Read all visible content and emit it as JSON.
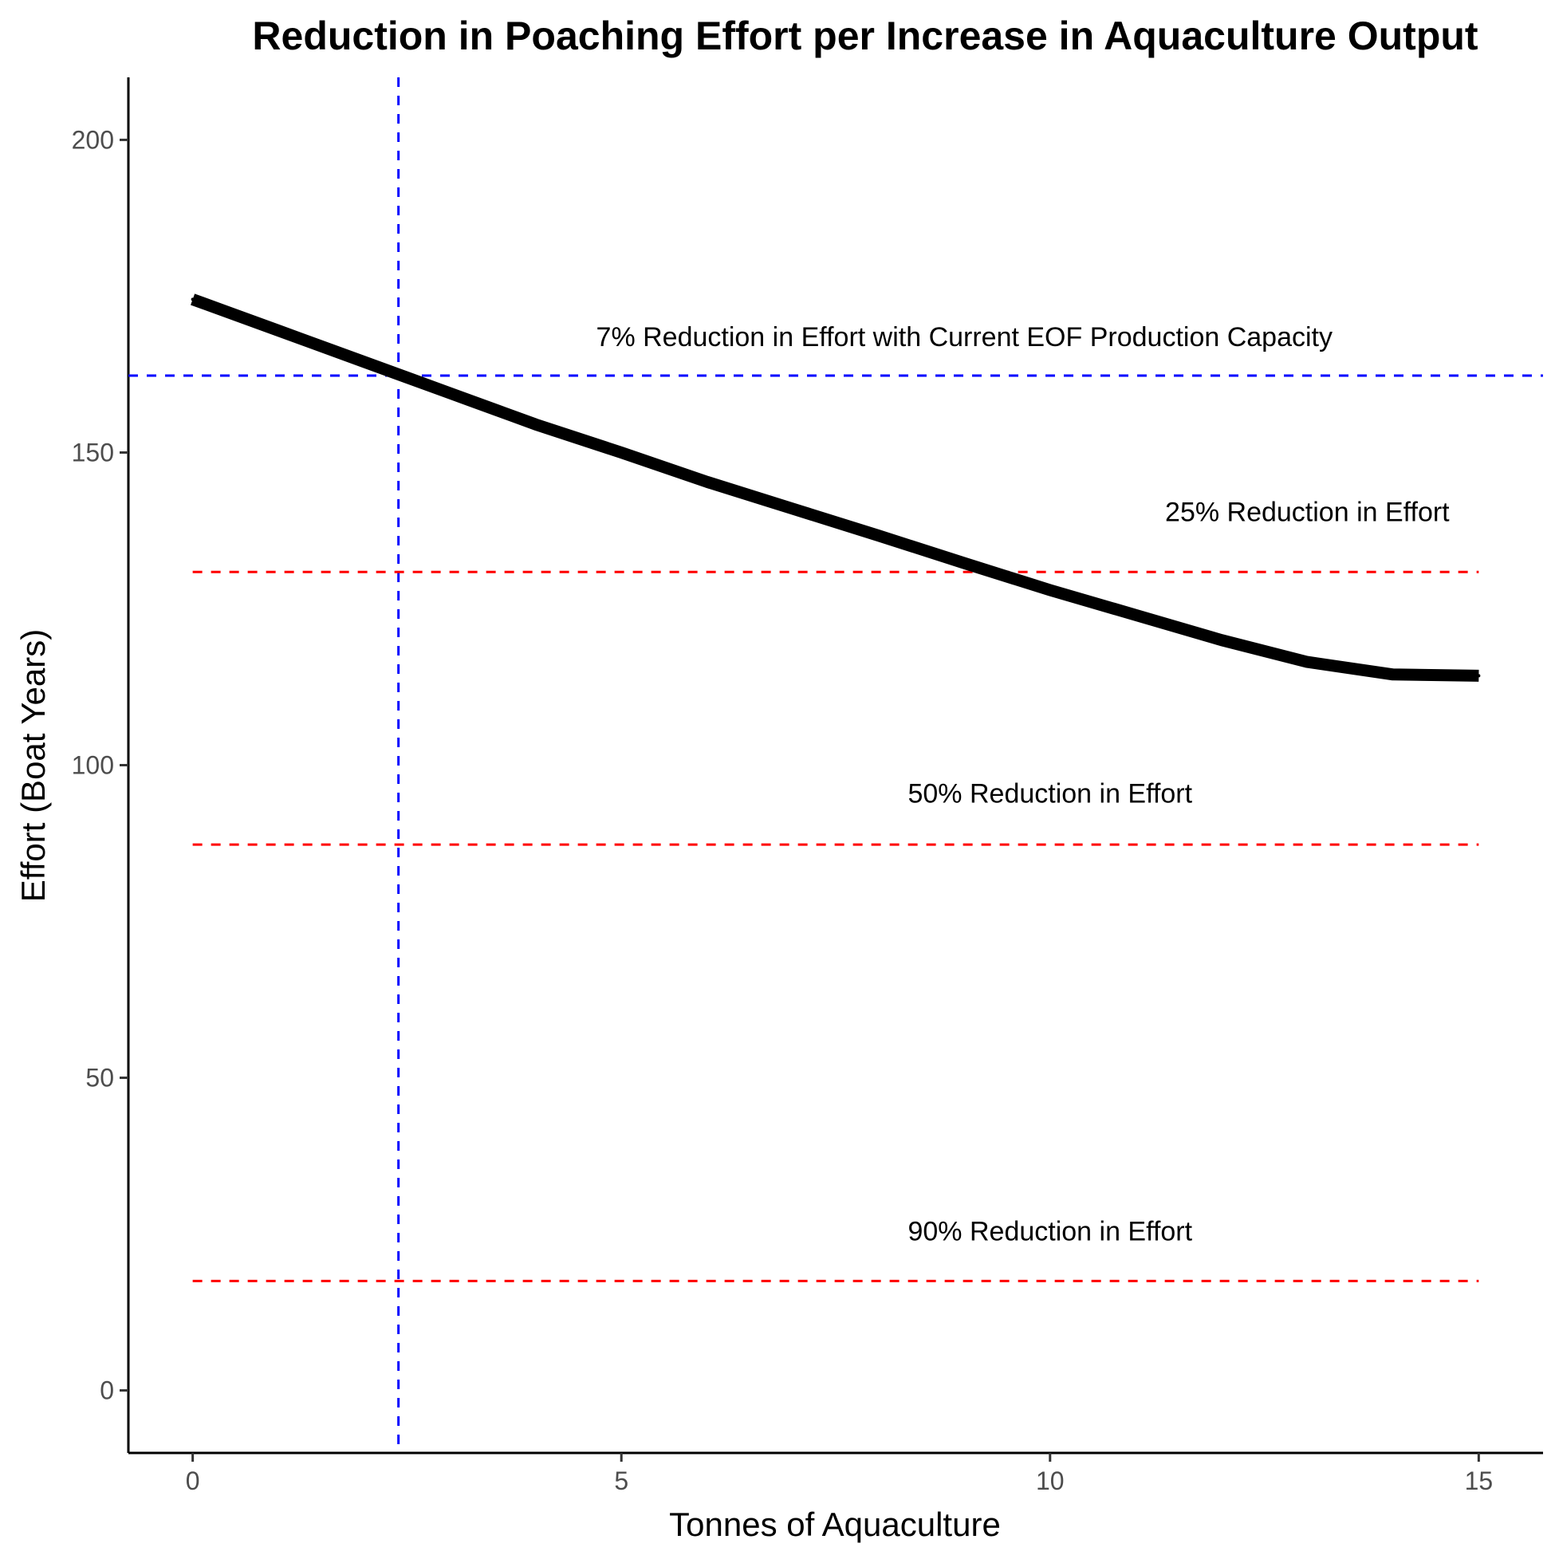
{
  "chart_data": {
    "type": "line",
    "title": "Reduction in Poaching Effort per Increase in Aquaculture Output",
    "xlabel": "Tonnes of Aquaculture",
    "ylabel": "Effort (Boat Years)",
    "xlim": [
      -0.75,
      15.75
    ],
    "ylim": [
      -10,
      210
    ],
    "xticks": [
      0,
      5,
      10,
      15
    ],
    "yticks": [
      0,
      50,
      100,
      150,
      200
    ],
    "grid": false,
    "series": [
      {
        "color": "#000000",
        "x": [
          0,
          1,
          2,
          3,
          4,
          5,
          6,
          7,
          8,
          9,
          10,
          11,
          12,
          13,
          14,
          15
        ],
        "y": [
          174.5,
          169.5,
          164.5,
          159.5,
          154.5,
          150,
          145.3,
          141,
          136.7,
          132.3,
          128,
          124,
          120,
          116.5,
          114.5,
          114.3
        ]
      }
    ],
    "reference_lines": [
      {
        "orientation": "vertical",
        "x": 2.4,
        "color": "#0000ff",
        "style": "dashed"
      },
      {
        "orientation": "horizontal",
        "y": 162.3,
        "color": "#0000ff",
        "style": "dashed",
        "full_width": true
      },
      {
        "orientation": "horizontal",
        "y": 130.9,
        "color": "#ff0000",
        "style": "dashed",
        "x_range": [
          0,
          15
        ]
      },
      {
        "orientation": "horizontal",
        "y": 87.3,
        "color": "#ff0000",
        "style": "dashed",
        "x_range": [
          0,
          15
        ]
      },
      {
        "orientation": "horizontal",
        "y": 17.5,
        "color": "#ff0000",
        "style": "dashed",
        "x_range": [
          0,
          15
        ]
      }
    ],
    "annotations": [
      {
        "text": "7% Reduction in Effort with Current EOF Production Capacity",
        "x": 9.0,
        "y": 167
      },
      {
        "text": "25% Reduction in Effort",
        "x": 13.0,
        "y": 139
      },
      {
        "text": "50% Reduction in Effort",
        "x": 10.0,
        "y": 94
      },
      {
        "text": "90% Reduction in Effort",
        "x": 10.0,
        "y": 24
      }
    ]
  }
}
